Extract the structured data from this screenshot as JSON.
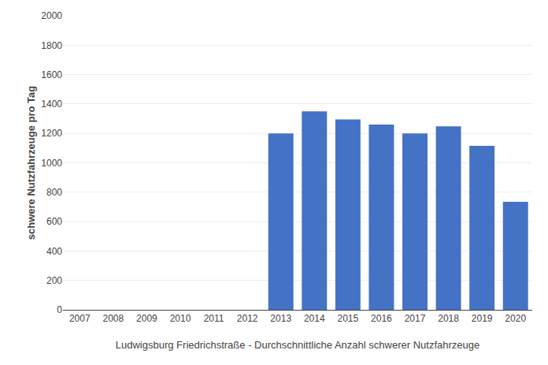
{
  "chart_data": {
    "type": "bar",
    "categories": [
      "2007",
      "2008",
      "2009",
      "2010",
      "2011",
      "2012",
      "2013",
      "2014",
      "2015",
      "2016",
      "2017",
      "2018",
      "2019",
      "2020"
    ],
    "values": [
      0,
      0,
      0,
      0,
      0,
      0,
      1200,
      1350,
      1295,
      1260,
      1200,
      1248,
      1115,
      735
    ],
    "color": "#4472C4",
    "ylabel": "schwere Nutzfahrzeuge pro Tag",
    "xlabel": "Ludwigsburg Friedrichstraße - Durchschnittliche Anzahl schwerer Nutzfahrzeuge",
    "ylim": [
      0,
      2000
    ],
    "yticks": [
      0,
      200,
      400,
      600,
      800,
      1000,
      1200,
      1400,
      1600,
      1800,
      2000
    ],
    "grid": true
  }
}
